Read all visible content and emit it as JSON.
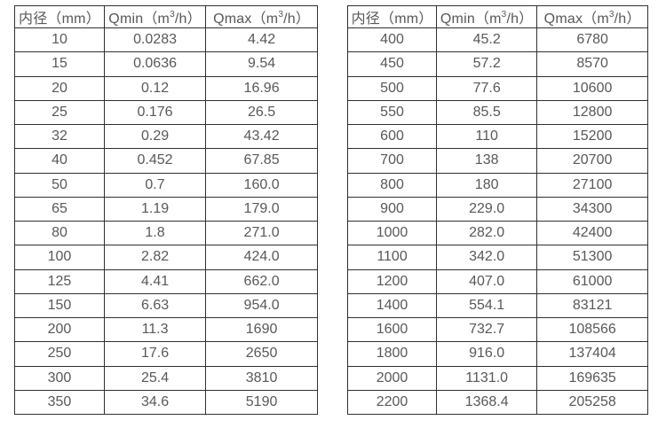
{
  "page": {
    "background": "#ffffff",
    "text_color": "#585858",
    "border_color": "#303030"
  },
  "chart_data": [
    {
      "type": "table",
      "title": "",
      "columns": [
        "内径（mm）",
        "Qmin（m³/h）",
        "Qmax（m³/h）"
      ],
      "header_parts": [
        {
          "key": "diameter",
          "pre": "内径（mm）",
          "sup": "",
          "post": ""
        },
        {
          "key": "qmin",
          "pre": "Qmin（m",
          "sup": "3",
          "post": "/h）"
        },
        {
          "key": "qmax",
          "pre": "Qmax（m",
          "sup": "3",
          "post": "/h）"
        }
      ],
      "rows": [
        [
          "10",
          "0.0283",
          "4.42"
        ],
        [
          "15",
          "0.0636",
          "9.54"
        ],
        [
          "20",
          "0.12",
          "16.96"
        ],
        [
          "25",
          "0.176",
          "26.5"
        ],
        [
          "32",
          "0.29",
          "43.42"
        ],
        [
          "40",
          "0.452",
          "67.85"
        ],
        [
          "50",
          "0.7",
          "160.0"
        ],
        [
          "65",
          "1.19",
          "179.0"
        ],
        [
          "80",
          "1.8",
          "271.0"
        ],
        [
          "100",
          "2.82",
          "424.0"
        ],
        [
          "125",
          "4.41",
          "662.0"
        ],
        [
          "150",
          "6.63",
          "954.0"
        ],
        [
          "200",
          "11.3",
          "1690"
        ],
        [
          "250",
          "17.6",
          "2650"
        ],
        [
          "300",
          "25.4",
          "3810"
        ],
        [
          "350",
          "34.6",
          "5190"
        ]
      ]
    },
    {
      "type": "table",
      "title": "",
      "columns": [
        "内径（mm）",
        "Qmin（m³/h）",
        "Qmax（m³/h）"
      ],
      "header_parts": [
        {
          "key": "diameter",
          "pre": "内径（mm）",
          "sup": "",
          "post": ""
        },
        {
          "key": "qmin",
          "pre": "Qmin（m",
          "sup": "3",
          "post": "/h）"
        },
        {
          "key": "qmax",
          "pre": "Qmax（m",
          "sup": "3",
          "post": "/h）"
        }
      ],
      "rows": [
        [
          "400",
          "45.2",
          "6780"
        ],
        [
          "450",
          "57.2",
          "8570"
        ],
        [
          "500",
          "77.6",
          "10600"
        ],
        [
          "550",
          "85.5",
          "12800"
        ],
        [
          "600",
          "110",
          "15200"
        ],
        [
          "700",
          "138",
          "20700"
        ],
        [
          "800",
          "180",
          "27100"
        ],
        [
          "900",
          "229.0",
          "34300"
        ],
        [
          "1000",
          "282.0",
          "42400"
        ],
        [
          "1100",
          "342.0",
          "51300"
        ],
        [
          "1200",
          "407.0",
          "61000"
        ],
        [
          "1400",
          "554.1",
          "83121"
        ],
        [
          "1600",
          "732.7",
          "108566"
        ],
        [
          "1800",
          "916.0",
          "137404"
        ],
        [
          "2000",
          "1131.0",
          "169635"
        ],
        [
          "2200",
          "1368.4",
          "205258"
        ]
      ]
    }
  ]
}
